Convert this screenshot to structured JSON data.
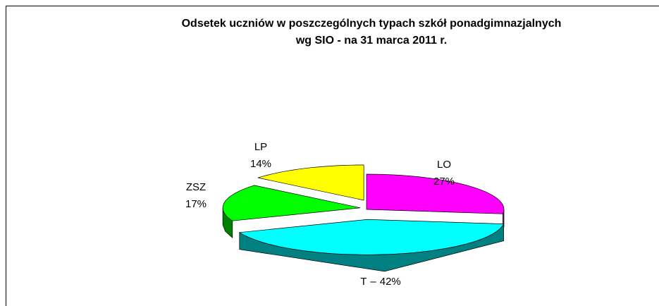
{
  "chart_data": {
    "type": "pie3d",
    "title": "Odsetek uczniów w poszczególnych typach szkół ponadgimnazjalnych",
    "subtitle": "wg SIO - na 31 marca 2011 r.",
    "categories": [
      "LO",
      "T",
      "ZSZ",
      "LP"
    ],
    "values": [
      27,
      42,
      17,
      14
    ],
    "value_labels": [
      "27%",
      "42%",
      "17%",
      "14%"
    ],
    "separator": "–",
    "colors": [
      "#ff00ff",
      "#00ffff",
      "#00ff00",
      "#ffff00"
    ],
    "side_colors": [
      "#800080",
      "#008080",
      "#008000",
      "#808000"
    ]
  }
}
